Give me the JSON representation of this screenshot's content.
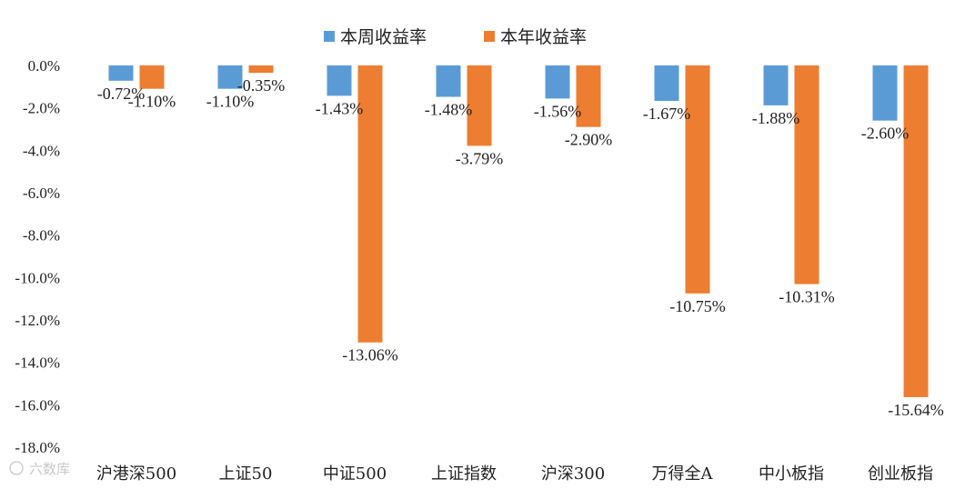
{
  "chart_data": {
    "type": "bar",
    "categories": [
      "沪港深500",
      "上证50",
      "中证500",
      "上证指数",
      "沪深300",
      "万得全A",
      "中小板指",
      "创业板指"
    ],
    "series": [
      {
        "name": "本周收益率",
        "color": "#5B9BD5",
        "values": [
          -0.72,
          -1.1,
          -1.43,
          -1.48,
          -1.56,
          -1.67,
          -1.88,
          -2.6
        ]
      },
      {
        "name": "本年收益率",
        "color": "#ED7D31",
        "values": [
          -1.1,
          -0.35,
          -13.06,
          -3.79,
          -2.9,
          -10.75,
          -10.31,
          -15.64
        ]
      }
    ],
    "ylim": [
      -18.0,
      0.0
    ],
    "yticks": [
      "0.0%",
      "-2.0%",
      "-4.0%",
      "-6.0%",
      "-8.0%",
      "-10.0%",
      "-12.0%",
      "-14.0%",
      "-16.0%",
      "-18.0%"
    ],
    "data_labels": [
      [
        "-0.72%",
        "-1.10%",
        "-1.43%",
        "-1.48%",
        "-1.56%",
        "-1.67%",
        "-1.88%",
        "-2.60%"
      ],
      [
        "-1.10%",
        "-0.35%",
        "-13.06%",
        "-3.79%",
        "-2.90%",
        "-10.75%",
        "-10.31%",
        "-15.64%"
      ]
    ],
    "legend_position": "top-center",
    "grid": false
  },
  "watermark": {
    "text": "六数库"
  }
}
